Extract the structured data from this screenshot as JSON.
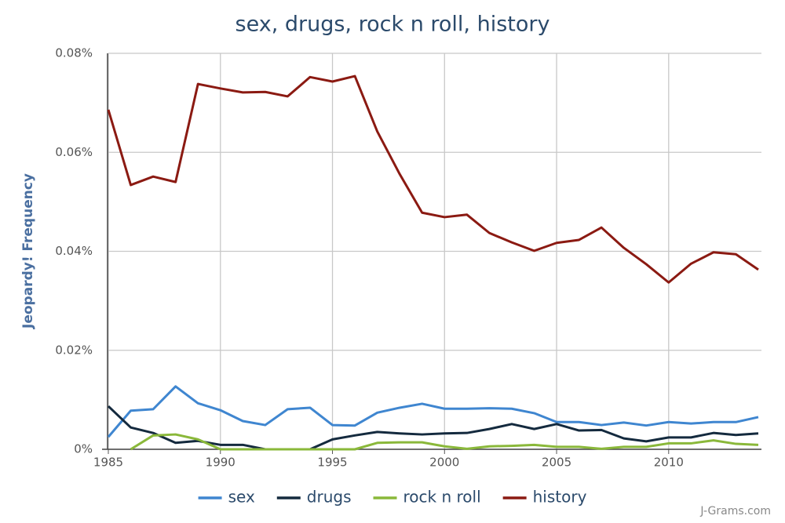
{
  "chart_data": {
    "type": "line",
    "title": "sex, drugs, rock n roll, history",
    "y_label": "Jeopardy! Frequency",
    "source": "J-Grams.com",
    "x": [
      1985,
      1986,
      1987,
      1988,
      1989,
      1990,
      1991,
      1992,
      1993,
      1994,
      1995,
      1996,
      1997,
      1998,
      1999,
      2000,
      2001,
      2002,
      2003,
      2004,
      2005,
      2006,
      2007,
      2008,
      2009,
      2010,
      2011,
      2012,
      2013,
      2014
    ],
    "xlim": [
      1985,
      2014
    ],
    "xticks": [
      1985,
      1990,
      1995,
      2000,
      2005,
      2010
    ],
    "ylim": [
      0,
      0.08
    ],
    "yticks": [
      {
        "value": 0,
        "label": "0%"
      },
      {
        "value": 0.02,
        "label": "0.02%"
      },
      {
        "value": 0.04,
        "label": "0.04%"
      },
      {
        "value": 0.06,
        "label": "0.06%"
      },
      {
        "value": 0.08,
        "label": "0.08%"
      }
    ],
    "grid": true,
    "legend": "bottom",
    "series": [
      {
        "name": "sex",
        "color": "#3f86d0",
        "values": [
          0.0025,
          0.0078,
          0.0081,
          0.0127,
          0.0093,
          0.0079,
          0.0057,
          0.0049,
          0.0081,
          0.0084,
          0.0049,
          0.0048,
          0.0074,
          0.0084,
          0.0092,
          0.0082,
          0.0082,
          0.0083,
          0.0082,
          0.0073,
          0.0055,
          0.0055,
          0.0049,
          0.0054,
          0.0048,
          0.0055,
          0.0052,
          0.0055,
          0.0055,
          0.0065
        ]
      },
      {
        "name": "drugs",
        "color": "#142a3e",
        "values": [
          0.0087,
          0.0044,
          0.0033,
          0.0013,
          0.0017,
          0.0009,
          0.0009,
          0,
          0,
          0,
          0.002,
          0.0028,
          0.0035,
          0.0032,
          0.003,
          0.0032,
          0.0033,
          0.0041,
          0.0051,
          0.0041,
          0.0051,
          0.0038,
          0.0039,
          0.0022,
          0.0016,
          0.0024,
          0.0024,
          0.0033,
          0.0029,
          0.0032
        ]
      },
      {
        "name": "rock n roll",
        "color": "#8ab83a",
        "values": [
          null,
          0,
          0.0028,
          0.003,
          0.002,
          0,
          0,
          0,
          0,
          0,
          0,
          0,
          0.0013,
          0.0014,
          0.0014,
          0.0006,
          0.0001,
          0.0006,
          0.0007,
          0.0009,
          0.0005,
          0.0005,
          0.0001,
          0.0005,
          0.0005,
          0.0012,
          0.0012,
          0.0018,
          0.0011,
          0.0009
        ]
      },
      {
        "name": "history",
        "color": "#8b1a12",
        "values": [
          0.0686,
          0.0534,
          0.0551,
          0.054,
          0.0738,
          0.0729,
          0.0721,
          0.0722,
          0.0713,
          0.0752,
          0.0743,
          0.0754,
          0.0642,
          0.0556,
          0.0478,
          0.0469,
          0.0474,
          0.0437,
          0.0418,
          0.0401,
          0.0417,
          0.0423,
          0.0448,
          0.0407,
          0.0374,
          0.0337,
          0.0375,
          0.0398,
          0.0394,
          0.0363
        ]
      }
    ]
  }
}
